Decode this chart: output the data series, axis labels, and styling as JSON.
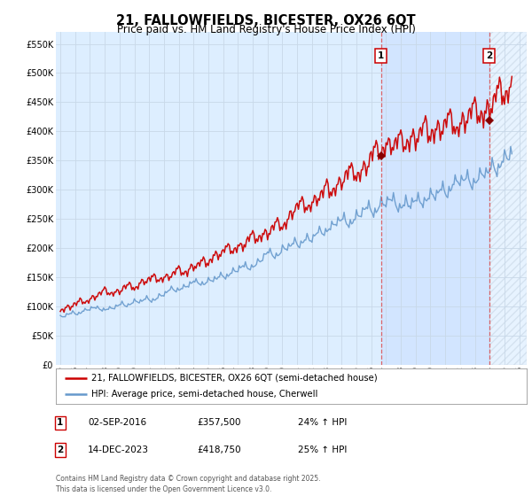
{
  "title": "21, FALLOWFIELDS, BICESTER, OX26 6QT",
  "subtitle": "Price paid vs. HM Land Registry's House Price Index (HPI)",
  "ytick_values": [
    0,
    50000,
    100000,
    150000,
    200000,
    250000,
    300000,
    350000,
    400000,
    450000,
    500000,
    550000
  ],
  "ylim": [
    0,
    570000
  ],
  "xlim_start": 1994.7,
  "xlim_end": 2026.5,
  "red_color": "#cc0000",
  "blue_color": "#6699cc",
  "grid_color": "#c8d8e8",
  "bg_color": "#ddeeff",
  "shade_color": "#cce0ff",
  "vline_color": "#dd4444",
  "sale1_year": 2016.67,
  "sale2_year": 2023.96,
  "sale1_price": 357500,
  "sale2_price": 418750,
  "marker1_label": "1",
  "marker2_label": "2",
  "legend_line1": "21, FALLOWFIELDS, BICESTER, OX26 6QT (semi-detached house)",
  "legend_line2": "HPI: Average price, semi-detached house, Cherwell",
  "annot1_date": "02-SEP-2016",
  "annot1_price": "£357,500",
  "annot1_hpi": "24% ↑ HPI",
  "annot2_date": "14-DEC-2023",
  "annot2_price": "£418,750",
  "annot2_hpi": "25% ↑ HPI",
  "footer": "Contains HM Land Registry data © Crown copyright and database right 2025.\nThis data is licensed under the Open Government Licence v3.0."
}
